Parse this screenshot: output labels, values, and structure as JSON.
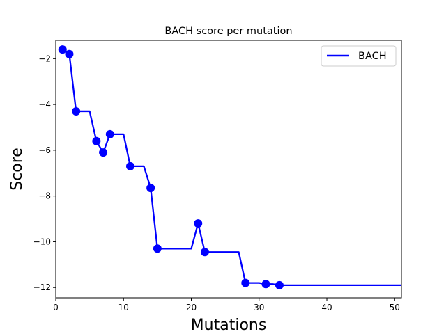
{
  "chart_data": {
    "type": "line",
    "title": "BACH score per mutation",
    "xlabel": "Mutations",
    "ylabel": "Score",
    "xlim": [
      0,
      51
    ],
    "ylim": [
      -12.45,
      -1.2
    ],
    "xticks": [
      0,
      10,
      20,
      30,
      40,
      50
    ],
    "yticks": [
      -2,
      -4,
      -6,
      -8,
      -10,
      -12
    ],
    "xtick_labels": [
      "0",
      "10",
      "20",
      "30",
      "40",
      "50"
    ],
    "ytick_labels": [
      "−2",
      "−4",
      "−6",
      "−8",
      "−10",
      "−12"
    ],
    "grid": false,
    "legend_position": "top-right",
    "series": [
      {
        "name": "BACH",
        "color": "#0000ff",
        "line": [
          [
            1,
            -1.6
          ],
          [
            2,
            -1.8
          ],
          [
            3,
            -4.3
          ],
          [
            5,
            -4.3
          ],
          [
            6,
            -5.6
          ],
          [
            7,
            -6.1
          ],
          [
            8,
            -5.3
          ],
          [
            10,
            -5.3
          ],
          [
            11,
            -6.7
          ],
          [
            13,
            -6.7
          ],
          [
            14,
            -7.65
          ],
          [
            15,
            -10.3
          ],
          [
            20,
            -10.3
          ],
          [
            21,
            -9.2
          ],
          [
            22,
            -10.45
          ],
          [
            27,
            -10.45
          ],
          [
            28,
            -11.8
          ],
          [
            30,
            -11.8
          ],
          [
            31,
            -11.85
          ],
          [
            32,
            -11.85
          ],
          [
            33,
            -11.9
          ],
          [
            51,
            -11.9
          ]
        ],
        "markers": [
          [
            1,
            -1.6
          ],
          [
            2,
            -1.8
          ],
          [
            3,
            -4.3
          ],
          [
            6,
            -5.6
          ],
          [
            7,
            -6.1
          ],
          [
            8,
            -5.3
          ],
          [
            11,
            -6.7
          ],
          [
            14,
            -7.65
          ],
          [
            15,
            -10.3
          ],
          [
            21,
            -9.2
          ],
          [
            22,
            -10.45
          ],
          [
            28,
            -11.8
          ],
          [
            31,
            -11.85
          ],
          [
            33,
            -11.9
          ]
        ]
      }
    ]
  }
}
